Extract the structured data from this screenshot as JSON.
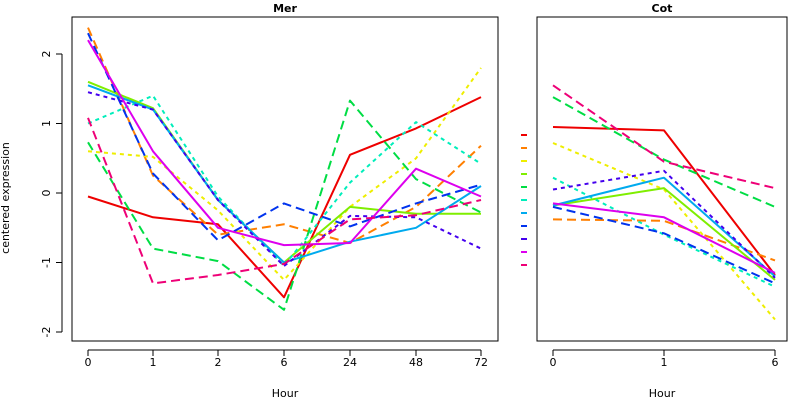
{
  "chart_data": [
    {
      "type": "line",
      "title": "Mer",
      "xlabel": "Hour",
      "ylabel": "centered expression",
      "x": [
        "0",
        "1",
        "2",
        "6",
        "24",
        "48",
        "72"
      ],
      "ylim": [
        -2,
        2
      ],
      "yticks": [
        -2,
        -1,
        0,
        1,
        2
      ],
      "grid": false,
      "series": [
        {
          "color": "#ee0000",
          "dash": "solid",
          "values": [
            -0.05,
            -0.35,
            -0.45,
            -1.5,
            0.55,
            0.93,
            1.38
          ]
        },
        {
          "color": "#ff7f00",
          "dash": "long",
          "values": [
            2.38,
            0.25,
            -0.6,
            -0.45,
            -0.72,
            -0.2,
            0.68
          ]
        },
        {
          "color": "#eeee00",
          "dash": "short",
          "values": [
            0.6,
            0.52,
            -0.25,
            -1.25,
            -0.2,
            0.5,
            1.8
          ]
        },
        {
          "color": "#7fee00",
          "dash": "solid",
          "values": [
            1.6,
            1.22,
            -0.1,
            -1.0,
            -0.2,
            -0.3,
            -0.3
          ]
        },
        {
          "color": "#00dd44",
          "dash": "long",
          "values": [
            0.73,
            -0.8,
            -0.98,
            -1.68,
            1.33,
            0.2,
            -0.28
          ]
        },
        {
          "color": "#00eebb",
          "dash": "short",
          "values": [
            1.0,
            1.4,
            -0.05,
            -1.05,
            0.15,
            1.02,
            0.42
          ]
        },
        {
          "color": "#00aaee",
          "dash": "solid",
          "values": [
            1.55,
            1.2,
            -0.1,
            -1.0,
            -0.7,
            -0.5,
            0.1
          ]
        },
        {
          "color": "#0033ee",
          "dash": "long",
          "values": [
            2.3,
            0.28,
            -0.68,
            -0.15,
            -0.48,
            -0.15,
            0.12
          ]
        },
        {
          "color": "#4400ee",
          "dash": "short",
          "values": [
            1.45,
            1.2,
            -0.1,
            -1.05,
            -0.33,
            -0.35,
            -0.8
          ]
        },
        {
          "color": "#dd00ee",
          "dash": "solid",
          "values": [
            2.2,
            0.6,
            -0.5,
            -0.75,
            -0.72,
            0.35,
            -0.05
          ]
        },
        {
          "color": "#ee0077",
          "dash": "long",
          "values": [
            1.08,
            -1.3,
            -1.18,
            -1.02,
            -0.38,
            -0.32,
            -0.1
          ]
        }
      ]
    },
    {
      "type": "line",
      "title": "Cot",
      "xlabel": "Hour",
      "ylabel": "",
      "x": [
        "0",
        "1",
        "6"
      ],
      "ylim": [
        -2,
        2
      ],
      "yticks": [
        -2,
        -1,
        0,
        1,
        2
      ],
      "grid": false,
      "series": [
        {
          "color": "#ee0000",
          "dash": "solid",
          "values": [
            0.95,
            0.9,
            -1.18
          ]
        },
        {
          "color": "#ff7f00",
          "dash": "long",
          "values": [
            -0.38,
            -0.4,
            -0.97
          ]
        },
        {
          "color": "#eeee00",
          "dash": "short",
          "values": [
            0.72,
            0.05,
            -1.82
          ]
        },
        {
          "color": "#7fee00",
          "dash": "solid",
          "values": [
            -0.18,
            0.07,
            -1.25
          ]
        },
        {
          "color": "#00dd44",
          "dash": "long",
          "values": [
            1.38,
            0.48,
            -0.2
          ]
        },
        {
          "color": "#00eebb",
          "dash": "short",
          "values": [
            0.22,
            -0.6,
            -1.35
          ]
        },
        {
          "color": "#00aaee",
          "dash": "solid",
          "values": [
            -0.18,
            0.22,
            -1.2
          ]
        },
        {
          "color": "#0033ee",
          "dash": "long",
          "values": [
            -0.2,
            -0.58,
            -1.3
          ]
        },
        {
          "color": "#4400ee",
          "dash": "short",
          "values": [
            0.05,
            0.32,
            -1.22
          ]
        },
        {
          "color": "#dd00ee",
          "dash": "solid",
          "values": [
            -0.15,
            -0.35,
            -1.15
          ]
        },
        {
          "color": "#ee0077",
          "dash": "long",
          "values": [
            1.55,
            0.45,
            0.07
          ]
        }
      ]
    }
  ]
}
